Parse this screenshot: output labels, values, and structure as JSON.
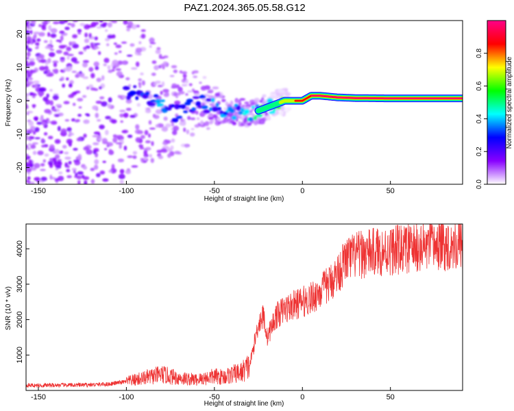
{
  "figure_title": "PAZ1.2024.365.05.58.G12",
  "chart_data": [
    {
      "type": "heatmap",
      "title": "",
      "xlabel": "Height of straight line (km)",
      "ylabel": "Frequency (Hz)",
      "xlim": [
        -157,
        91
      ],
      "ylim": [
        -25,
        24
      ],
      "x_ticks": [
        -150,
        -100,
        -50,
        0,
        50
      ],
      "y_ticks": [
        -20,
        -10,
        0,
        10,
        20
      ],
      "colorbar": {
        "label": "Normalized spectral amplitude",
        "range": [
          0,
          1
        ],
        "ticks": [
          0.0,
          0.2,
          0.4,
          0.6,
          0.8
        ],
        "colors": [
          "#ffffff",
          "#8800ff",
          "#0000ff",
          "#00ffff",
          "#00ff00",
          "#ffff00",
          "#ff0000",
          "#ff0088"
        ]
      },
      "ridge": {
        "x": [
          -100,
          -90,
          -80,
          -72,
          -60,
          -50,
          -40,
          -30,
          -20,
          -10,
          0,
          5,
          10,
          20,
          30,
          50,
          91
        ],
        "frequency": [
          3,
          2,
          -1,
          -4,
          0,
          -2,
          -3,
          -4,
          -2,
          0,
          0,
          1.5,
          1.5,
          1,
          0.8,
          0.7,
          0.7
        ],
        "amplitude": [
          0.25,
          0.3,
          0.35,
          0.3,
          0.3,
          0.35,
          0.35,
          0.4,
          0.5,
          0.65,
          0.85,
          0.9,
          0.95,
          0.95,
          1.0,
          1.0,
          1.0
        ]
      }
    },
    {
      "type": "line",
      "title": "",
      "xlabel": "Height of straight line (km)",
      "ylabel": "SNR (10 * v/v)",
      "xlim": [
        -157,
        91
      ],
      "ylim": [
        0,
        4700
      ],
      "x_ticks": [
        -150,
        -100,
        -50,
        0,
        50
      ],
      "y_ticks": [
        1000,
        2000,
        3000,
        4000
      ],
      "color": "#ee3333",
      "series": [
        {
          "x": [
            -157,
            -150,
            -140,
            -130,
            -120,
            -110,
            -100,
            -90,
            -80,
            -70,
            -60,
            -50,
            -45,
            -40,
            -35,
            -30,
            -27,
            -25,
            -22,
            -20,
            -15,
            -10,
            -5,
            0,
            5,
            10,
            15,
            20,
            25,
            30,
            40,
            50,
            60,
            70,
            80,
            91
          ],
          "values": [
            150,
            140,
            150,
            150,
            160,
            180,
            250,
            350,
            450,
            350,
            300,
            400,
            380,
            450,
            500,
            700,
            1400,
            1900,
            2100,
            1500,
            2100,
            2300,
            2400,
            2500,
            2600,
            2800,
            3000,
            3300,
            3700,
            3800,
            3900,
            3950,
            4000,
            4050,
            4100,
            4150
          ]
        }
      ]
    }
  ]
}
